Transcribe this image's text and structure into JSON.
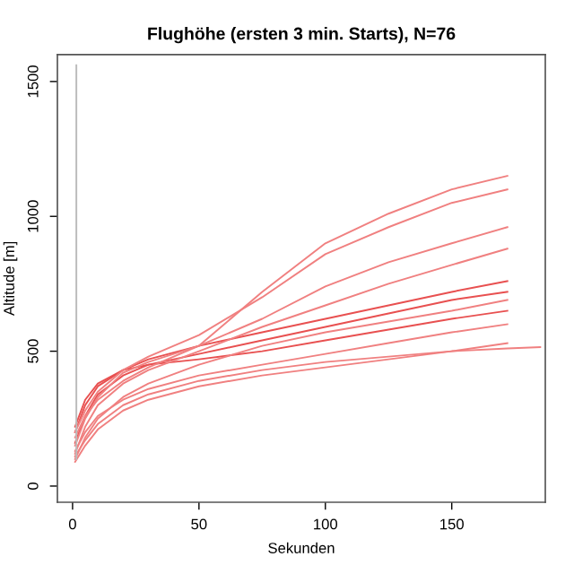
{
  "chart_data": {
    "type": "line",
    "title": "Flughöhe (ersten 3 min. Starts), N=76",
    "xlabel": "Sekunden",
    "ylabel": "Altitude [m]",
    "xlim": [
      -6,
      187
    ],
    "ylim": [
      -60,
      1600
    ],
    "xticks": [
      0,
      50,
      100,
      150
    ],
    "yticks": [
      0,
      500,
      1000,
      1500
    ],
    "grid": false,
    "marker": "none",
    "line_style": "solid",
    "series": [
      {
        "color": "#bbbbbb",
        "x": [
          1.5,
          1.5
        ],
        "values": [
          100,
          1560
        ]
      },
      {
        "color": "#f08080",
        "x": [
          1,
          5,
          10,
          20,
          30,
          50,
          75,
          100,
          125,
          150,
          172
        ],
        "values": [
          150,
          250,
          330,
          420,
          460,
          520,
          720,
          900,
          1010,
          1100,
          1150
        ]
      },
      {
        "color": "#f08080",
        "x": [
          1,
          5,
          10,
          20,
          30,
          50,
          75,
          100,
          125,
          150,
          172
        ],
        "values": [
          200,
          280,
          350,
          430,
          480,
          560,
          700,
          860,
          960,
          1050,
          1100
        ]
      },
      {
        "color": "#f08080",
        "x": [
          1,
          5,
          10,
          20,
          30,
          50,
          75,
          100,
          125,
          150,
          172
        ],
        "values": [
          180,
          260,
          320,
          390,
          440,
          520,
          620,
          740,
          830,
          900,
          960
        ]
      },
      {
        "color": "#f08080",
        "x": [
          1,
          5,
          10,
          20,
          30,
          50,
          75,
          100,
          125,
          150,
          172
        ],
        "values": [
          120,
          220,
          300,
          380,
          430,
          500,
          590,
          670,
          750,
          820,
          880
        ]
      },
      {
        "color": "#e85050",
        "x": [
          1,
          5,
          10,
          20,
          30,
          50,
          75,
          100,
          125,
          150,
          172
        ],
        "values": [
          200,
          300,
          370,
          430,
          470,
          520,
          570,
          620,
          670,
          720,
          760
        ]
      },
      {
        "color": "#e85050",
        "x": [
          1,
          5,
          10,
          20,
          30,
          50,
          75,
          100,
          125,
          150,
          172
        ],
        "values": [
          160,
          260,
          340,
          410,
          450,
          490,
          540,
          590,
          640,
          690,
          720
        ]
      },
      {
        "color": "#f08080",
        "x": [
          1,
          5,
          10,
          20,
          30,
          50,
          75,
          100,
          125,
          150,
          172
        ],
        "values": [
          100,
          180,
          250,
          330,
          380,
          450,
          520,
          570,
          610,
          650,
          690
        ]
      },
      {
        "color": "#e85050",
        "x": [
          1,
          5,
          10,
          20,
          30,
          50,
          75,
          100,
          125,
          150,
          172
        ],
        "values": [
          220,
          320,
          380,
          430,
          450,
          470,
          500,
          540,
          580,
          620,
          650
        ]
      },
      {
        "color": "#f08080",
        "x": [
          1,
          5,
          10,
          20,
          30,
          50,
          75,
          100,
          125,
          150,
          172
        ],
        "values": [
          130,
          200,
          260,
          320,
          360,
          410,
          450,
          490,
          530,
          570,
          600
        ]
      },
      {
        "color": "#f08080",
        "x": [
          1,
          5,
          10,
          20,
          30,
          50,
          75,
          100,
          125,
          150,
          172
        ],
        "values": [
          90,
          150,
          210,
          280,
          320,
          370,
          410,
          440,
          470,
          500,
          530
        ]
      },
      {
        "color": "#f08080",
        "x": [
          1,
          5,
          10,
          20,
          30,
          50,
          75,
          100,
          125,
          150,
          172,
          185
        ],
        "values": [
          110,
          170,
          230,
          300,
          340,
          390,
          430,
          460,
          480,
          500,
          510,
          515
        ]
      }
    ]
  }
}
